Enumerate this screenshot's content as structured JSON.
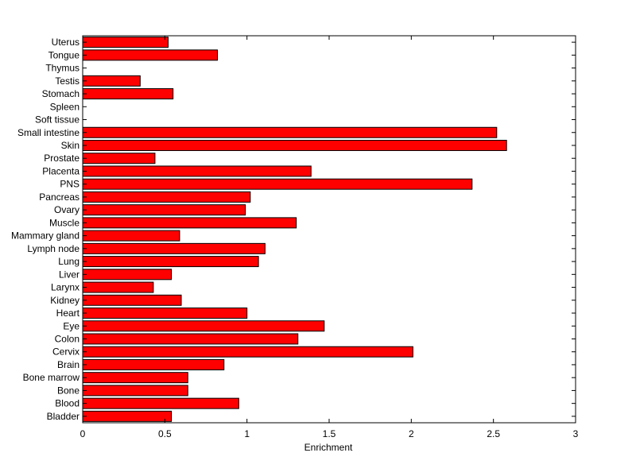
{
  "chart_data": {
    "type": "bar",
    "orientation": "horizontal",
    "categories": [
      "Bladder",
      "Blood",
      "Bone",
      "Bone marrow",
      "Brain",
      "Cervix",
      "Colon",
      "Eye",
      "Heart",
      "Kidney",
      "Larynx",
      "Liver",
      "Lung",
      "Lymph node",
      "Mammary gland",
      "Muscle",
      "Ovary",
      "Pancreas",
      "PNS",
      "Placenta",
      "Prostate",
      "Skin",
      "Small intestine",
      "Soft tissue",
      "Spleen",
      "Stomach",
      "Testis",
      "Thymus",
      "Tongue",
      "Uterus"
    ],
    "values": [
      0.54,
      0.95,
      0.64,
      0.64,
      0.86,
      2.01,
      1.31,
      1.47,
      1.0,
      0.6,
      0.43,
      0.54,
      1.07,
      1.11,
      0.59,
      1.3,
      0.99,
      1.02,
      2.37,
      1.39,
      0.44,
      2.58,
      2.52,
      0,
      0,
      0.55,
      0.35,
      0,
      0.82,
      0.52
    ],
    "xlabel": "Enrichment",
    "ylabel": "",
    "title": "",
    "xlim": [
      0,
      3
    ],
    "xticks": [
      0,
      0.5,
      1,
      1.5,
      2,
      2.5,
      3
    ],
    "xtick_labels": [
      "0",
      "0.5",
      "1",
      "1.5",
      "2",
      "2.5",
      "3"
    ],
    "grid": false,
    "colors": {
      "bar_fill": "#ff0000",
      "bar_stroke": "#000000",
      "axis": "#000000",
      "background": "#ffffff"
    }
  }
}
